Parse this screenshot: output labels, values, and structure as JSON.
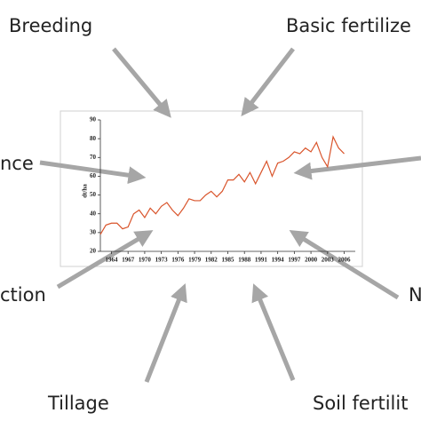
{
  "chart_data": {
    "type": "line",
    "y_label": "dt/ha",
    "x": [
      1962,
      1963,
      1964,
      1965,
      1966,
      1967,
      1968,
      1969,
      1970,
      1971,
      1972,
      1973,
      1974,
      1975,
      1976,
      1977,
      1978,
      1979,
      1980,
      1981,
      1982,
      1983,
      1984,
      1985,
      1986,
      1987,
      1988,
      1989,
      1990,
      1991,
      1992,
      1993,
      1994,
      1995,
      1996,
      1997,
      1998,
      1999,
      2000,
      2001,
      2002,
      2003,
      2004,
      2005,
      2006
    ],
    "series": [
      {
        "color": "#d9542b",
        "values": [
          29,
          34,
          35,
          35,
          32,
          33,
          40,
          42,
          38,
          43,
          40,
          44,
          46,
          42,
          39,
          43,
          48,
          47,
          47,
          50,
          52,
          49,
          52,
          58,
          58,
          61,
          57,
          62,
          56,
          62,
          68,
          60,
          67,
          68,
          70,
          73,
          72,
          75,
          73,
          78,
          70,
          65,
          81,
          75,
          72
        ]
      }
    ],
    "xlim": [
      1962,
      2008
    ],
    "xticks": [
      1964,
      1967,
      1970,
      1973,
      1976,
      1979,
      1982,
      1985,
      1988,
      1991,
      1994,
      1997,
      2000,
      2003,
      2006
    ],
    "ylim": [
      20,
      90
    ],
    "yticks": [
      20,
      30,
      40,
      50,
      60,
      70,
      80,
      90
    ]
  },
  "factors": [
    "Breeding",
    "Basic fertilize",
    "nce",
    "ction",
    "N",
    "Tillage",
    "Soil fertilit"
  ]
}
